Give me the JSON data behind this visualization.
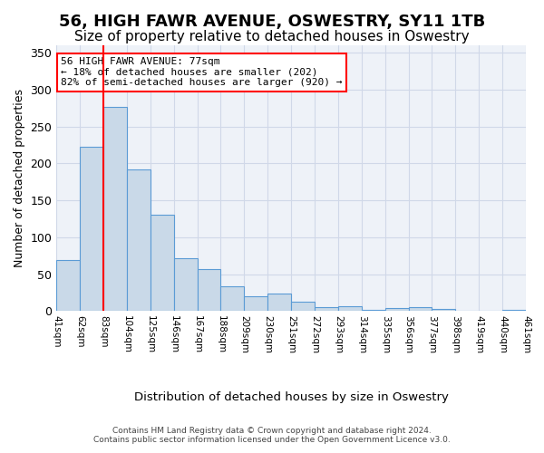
{
  "title": "56, HIGH FAWR AVENUE, OSWESTRY, SY11 1TB",
  "subtitle": "Size of property relative to detached houses in Oswestry",
  "xlabel": "Distribution of detached houses by size in Oswestry",
  "ylabel": "Number of detached properties",
  "footer1": "Contains HM Land Registry data © Crown copyright and database right 2024.",
  "footer2": "Contains public sector information licensed under the Open Government Licence v3.0.",
  "bar_color": "#c9d9e8",
  "bar_edge_color": "#5b9bd5",
  "bar_heights": [
    69,
    222,
    277,
    192,
    131,
    72,
    57,
    34,
    20,
    24,
    13,
    5,
    6,
    2,
    4,
    5,
    3,
    1,
    0,
    2
  ],
  "bar_labels": [
    "41sqm",
    "62sqm",
    "83sqm",
    "104sqm",
    "125sqm",
    "146sqm",
    "167sqm",
    "188sqm",
    "209sqm",
    "230sqm",
    "251sqm",
    "272sqm",
    "293sqm",
    "314sqm",
    "335sqm",
    "356sqm",
    "377sqm",
    "398sqm",
    "419sqm",
    "440sqm",
    "461sqm"
  ],
  "annotation_text": "56 HIGH FAWR AVENUE: 77sqm\n← 18% of detached houses are smaller (202)\n82% of semi-detached houses are larger (920) →",
  "red_line_x": 1.5,
  "ylim": [
    0,
    360
  ],
  "yticks": [
    0,
    50,
    100,
    150,
    200,
    250,
    300,
    350
  ],
  "grid_color": "#d0d8e8",
  "background_color": "#eef2f8",
  "title_fontsize": 13,
  "subtitle_fontsize": 11,
  "axis_fontsize": 9
}
